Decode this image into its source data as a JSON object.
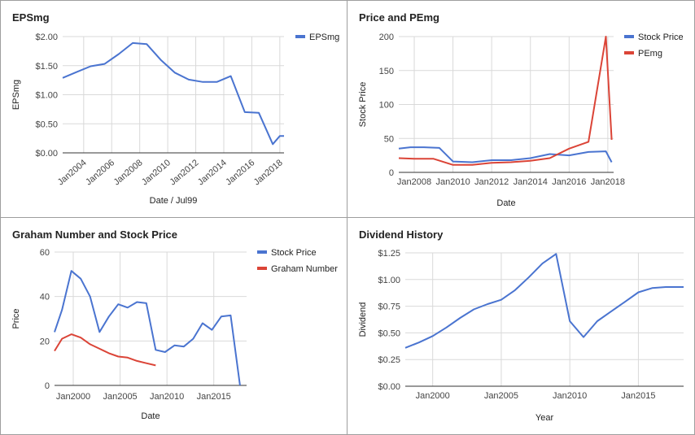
{
  "chart_data": [
    {
      "type": "line",
      "title": "EPSmg",
      "xlabel": "Date / Jul99",
      "ylabel": "EPSmg",
      "xlim": [
        2002.5,
        2018.3
      ],
      "ylim": [
        0,
        2
      ],
      "y_ticks": [
        0,
        0.5,
        1,
        1.5,
        2
      ],
      "y_tick_labels": [
        "$0.00",
        "$0.50",
        "$1.00",
        "$1.50",
        "$2.00"
      ],
      "x_ticks": [
        2004,
        2006,
        2008,
        2010,
        2012,
        2014,
        2016,
        2018
      ],
      "x_tick_labels": [
        "Jan2004",
        "Jan2006",
        "Jan2008",
        "Jan2010",
        "Jan2012",
        "Jan2014",
        "Jan2016",
        "Jan2018"
      ],
      "x_tick_rotation": -40,
      "legend": "right",
      "series": [
        {
          "name": "EPSmg",
          "color": "#4a74d0",
          "x": [
            2002.5,
            2003.5,
            2004.5,
            2005.5,
            2006.5,
            2007.5,
            2008.5,
            2009.5,
            2010.5,
            2011.5,
            2012.5,
            2013.5,
            2014.5,
            2015.5,
            2016.5,
            2017.5,
            2018.0,
            2018.3
          ],
          "y": [
            1.29,
            1.39,
            1.49,
            1.53,
            1.7,
            1.89,
            1.87,
            1.6,
            1.38,
            1.26,
            1.22,
            1.22,
            1.32,
            0.7,
            0.69,
            0.15,
            0.29,
            0.29
          ]
        }
      ]
    },
    {
      "type": "line",
      "title": "Price and PEmg",
      "xlabel": "Date",
      "ylabel": "Stock Price",
      "xlim": [
        2007.2,
        2018.3
      ],
      "ylim": [
        0,
        200
      ],
      "y_ticks": [
        0,
        50,
        100,
        150,
        200
      ],
      "y_tick_labels": [
        "0",
        "50",
        "100",
        "150",
        "200"
      ],
      "x_ticks": [
        2008,
        2010,
        2012,
        2014,
        2016,
        2018
      ],
      "x_tick_labels": [
        "Jan2008",
        "Jan2010",
        "Jan2012",
        "Jan2014",
        "Jan2016",
        "Jan2018"
      ],
      "legend": "right",
      "series": [
        {
          "name": "Stock Price",
          "color": "#4a74d0",
          "x": [
            2007.2,
            2007.8,
            2008.5,
            2009.3,
            2010.0,
            2011.0,
            2012.0,
            2013.0,
            2014.0,
            2015.0,
            2016.0,
            2017.0,
            2017.9,
            2018.2
          ],
          "y": [
            35,
            37,
            37,
            36,
            16,
            15,
            18,
            18,
            21,
            27,
            25,
            30,
            31,
            15
          ]
        },
        {
          "name": "PEmg",
          "color": "#db4437",
          "x": [
            2007.2,
            2008.0,
            2009.0,
            2010.0,
            2011.0,
            2012.0,
            2013.0,
            2014.0,
            2015.0,
            2016.0,
            2017.0,
            2017.9,
            2018.2
          ],
          "y": [
            21,
            20,
            20,
            11,
            11,
            14,
            15,
            17,
            21,
            35,
            45,
            200,
            48
          ]
        }
      ]
    },
    {
      "type": "line",
      "title": "Graham Number and Stock Price",
      "xlabel": "Date",
      "ylabel": "Price",
      "xlim": [
        1998,
        2018.5
      ],
      "ylim": [
        0,
        60
      ],
      "y_ticks": [
        0,
        20,
        40,
        60
      ],
      "y_tick_labels": [
        "0",
        "20",
        "40",
        "60"
      ],
      "x_ticks": [
        2000,
        2005,
        2010,
        2015
      ],
      "x_tick_labels": [
        "Jan2000",
        "Jan2005",
        "Jan2010",
        "Jan2015"
      ],
      "legend": "right",
      "series": [
        {
          "name": "Stock Price",
          "color": "#4a74d0",
          "x": [
            1998.0,
            1998.8,
            1999.8,
            2000.8,
            2001.8,
            2002.8,
            2003.8,
            2004.8,
            2005.8,
            2006.8,
            2007.8,
            2008.8,
            2009.8,
            2010.8,
            2011.8,
            2012.8,
            2013.8,
            2014.8,
            2015.8,
            2016.8,
            2017.8
          ],
          "y": [
            24,
            34,
            51.5,
            48,
            40,
            24,
            31,
            36.5,
            35,
            37.5,
            37,
            16,
            15,
            18,
            17.5,
            21,
            28,
            25,
            31,
            31.5,
            0
          ]
        },
        {
          "name": "Graham Number",
          "color": "#db4437",
          "x": [
            1998.0,
            1998.8,
            1999.8,
            2000.8,
            2001.8,
            2002.8,
            2003.8,
            2004.8,
            2005.8,
            2006.8,
            2007.8,
            2008.8
          ],
          "y": [
            15.5,
            21,
            23,
            21.5,
            18.5,
            16.5,
            14.5,
            13,
            12.5,
            11,
            10,
            9
          ]
        }
      ]
    },
    {
      "type": "line",
      "title": "Dividend History",
      "xlabel": "Year",
      "ylabel": "Dividend",
      "xlim": [
        1998,
        2018.3
      ],
      "ylim": [
        0,
        1.25
      ],
      "y_ticks": [
        0,
        0.25,
        0.5,
        0.75,
        1,
        1.25
      ],
      "y_tick_labels": [
        "$0.00",
        "$0.25",
        "$0.50",
        "$0.75",
        "$1.00",
        "$1.25"
      ],
      "x_ticks": [
        2000,
        2005,
        2010,
        2015
      ],
      "x_tick_labels": [
        "Jan2000",
        "Jan2005",
        "Jan2010",
        "Jan2015"
      ],
      "legend": "none",
      "series": [
        {
          "name": "",
          "color": "#4a74d0",
          "x": [
            1998,
            1999,
            2000,
            2001,
            2002,
            2003,
            2004,
            2005,
            2006,
            2007,
            2008,
            2009,
            2010,
            2011,
            2012,
            2013,
            2014,
            2015,
            2016,
            2017,
            2018.3
          ],
          "y": [
            0.36,
            0.41,
            0.47,
            0.55,
            0.64,
            0.72,
            0.77,
            0.81,
            0.9,
            1.02,
            1.15,
            1.24,
            0.61,
            0.46,
            0.61,
            0.7,
            0.79,
            0.88,
            0.92,
            0.93,
            0.93
          ]
        }
      ]
    }
  ]
}
